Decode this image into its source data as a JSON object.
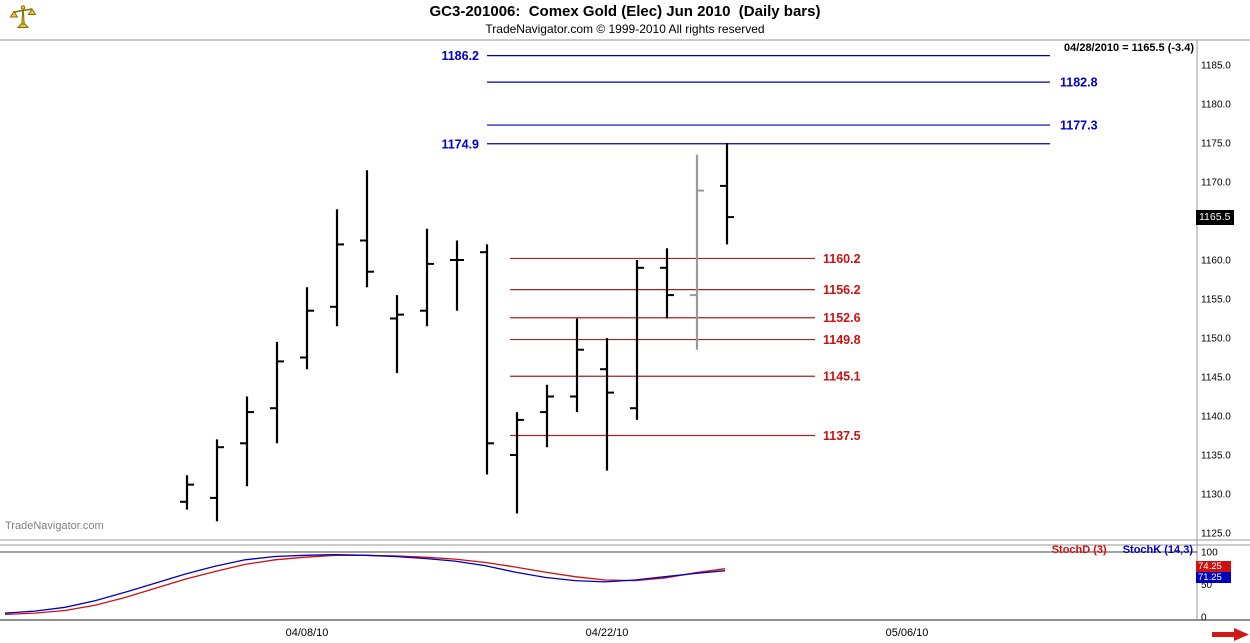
{
  "header": {
    "title": "GC3-201006:  Comex Gold (Elec) Jun 2010  (Daily bars)",
    "subtitle": "TradeNavigator.com © 1999-2010 All rights reserved",
    "info_label": "04/28/2010 = 1165.5 (-3.4)"
  },
  "watermark": "TradeNavigator.com",
  "price_axis": {
    "ticks": [
      "1185.0",
      "1180.0",
      "1175.0",
      "1170.0",
      "1165.0",
      "1160.0",
      "1155.0",
      "1150.0",
      "1145.0",
      "1140.0",
      "1135.0",
      "1130.0",
      "1125.0"
    ],
    "last_price_box": "1165.5"
  },
  "chart_data": {
    "type": "ohlc-bars",
    "title": "GC3-201006: Comex Gold (Elec) Jun 2010 (Daily bars)",
    "ylim": [
      1124.5,
      1188.0
    ],
    "colors": {
      "bar": "#000000",
      "highlighted_bar": "#9a9a9a",
      "resistance_line": "#0000b0",
      "resistance_label": "#0000cc",
      "support_line": "#aa2222",
      "support_label": "#cc1111",
      "stoch_k": "#0000bb",
      "stoch_d": "#cc1111"
    },
    "bars": [
      {
        "o": 1129.0,
        "h": 1132.4,
        "l": 1128.0,
        "c": 1131.2
      },
      {
        "o": 1129.5,
        "h": 1137.0,
        "l": 1126.5,
        "c": 1136.0
      },
      {
        "o": 1136.5,
        "h": 1142.5,
        "l": 1131.0,
        "c": 1140.5
      },
      {
        "o": 1141.0,
        "h": 1149.5,
        "l": 1136.5,
        "c": 1147.0
      },
      {
        "o": 1147.5,
        "h": 1156.5,
        "l": 1146.0,
        "c": 1153.5
      },
      {
        "o": 1154.0,
        "h": 1166.5,
        "l": 1151.5,
        "c": 1162.0
      },
      {
        "o": 1162.5,
        "h": 1171.5,
        "l": 1156.5,
        "c": 1158.5
      },
      {
        "o": 1152.5,
        "h": 1155.5,
        "l": 1145.5,
        "c": 1153.0
      },
      {
        "o": 1153.5,
        "h": 1164.0,
        "l": 1151.5,
        "c": 1159.5
      },
      {
        "o": 1160.0,
        "h": 1162.5,
        "l": 1153.5,
        "c": 1160.0
      },
      {
        "o": 1161.0,
        "h": 1162.0,
        "l": 1132.5,
        "c": 1136.5
      },
      {
        "o": 1135.0,
        "h": 1140.5,
        "l": 1127.5,
        "c": 1139.5
      },
      {
        "o": 1140.5,
        "h": 1144.0,
        "l": 1136.0,
        "c": 1142.5
      },
      {
        "o": 1142.5,
        "h": 1152.5,
        "l": 1140.5,
        "c": 1148.5
      },
      {
        "o": 1146.0,
        "h": 1150.0,
        "l": 1133.0,
        "c": 1143.0
      },
      {
        "o": 1141.0,
        "h": 1160.0,
        "l": 1139.5,
        "c": 1159.0
      },
      {
        "o": 1159.0,
        "h": 1161.5,
        "l": 1152.5,
        "c": 1155.5
      },
      {
        "o": 1155.5,
        "h": 1173.5,
        "l": 1148.5,
        "c": 1168.9,
        "color": "gray"
      },
      {
        "o": 1169.5,
        "h": 1175.0,
        "l": 1162.0,
        "c": 1165.5
      }
    ],
    "resistance_levels": [
      {
        "value": 1186.2,
        "label_side": "left"
      },
      {
        "value": 1182.8,
        "label_side": "right"
      },
      {
        "value": 1177.3,
        "label_side": "right"
      },
      {
        "value": 1174.9,
        "label_side": "left"
      }
    ],
    "support_levels": [
      1160.2,
      1156.2,
      1152.6,
      1149.8,
      1145.1,
      1137.5
    ],
    "last_bar": {
      "date": "04/28/2010",
      "close": 1165.5,
      "change": -3.4
    },
    "x_labels": [
      {
        "text": "04/08/10",
        "i": 4
      },
      {
        "text": "04/22/10",
        "i": 14
      },
      {
        "text": "05/06/10",
        "i": 24
      }
    ],
    "stochastic": {
      "ylim": [
        0,
        100
      ],
      "ticks": [
        "100",
        "50",
        "0"
      ],
      "d_label": "StochD (3)",
      "k_label": "StochK (14,3)",
      "d_last_label": "74.25",
      "k_last_label": "71.25",
      "k": [
        6,
        9,
        15,
        25,
        38,
        52,
        66,
        78,
        88,
        93,
        95,
        96,
        95,
        93,
        90,
        86,
        79,
        69,
        61,
        56,
        54,
        57,
        62,
        67,
        71.25
      ],
      "d": [
        4,
        6,
        10,
        18,
        30,
        44,
        58,
        70,
        81,
        88,
        92,
        95,
        95,
        94,
        92,
        89,
        84,
        77,
        69,
        62,
        57,
        56,
        60,
        68,
        74.25
      ]
    }
  }
}
